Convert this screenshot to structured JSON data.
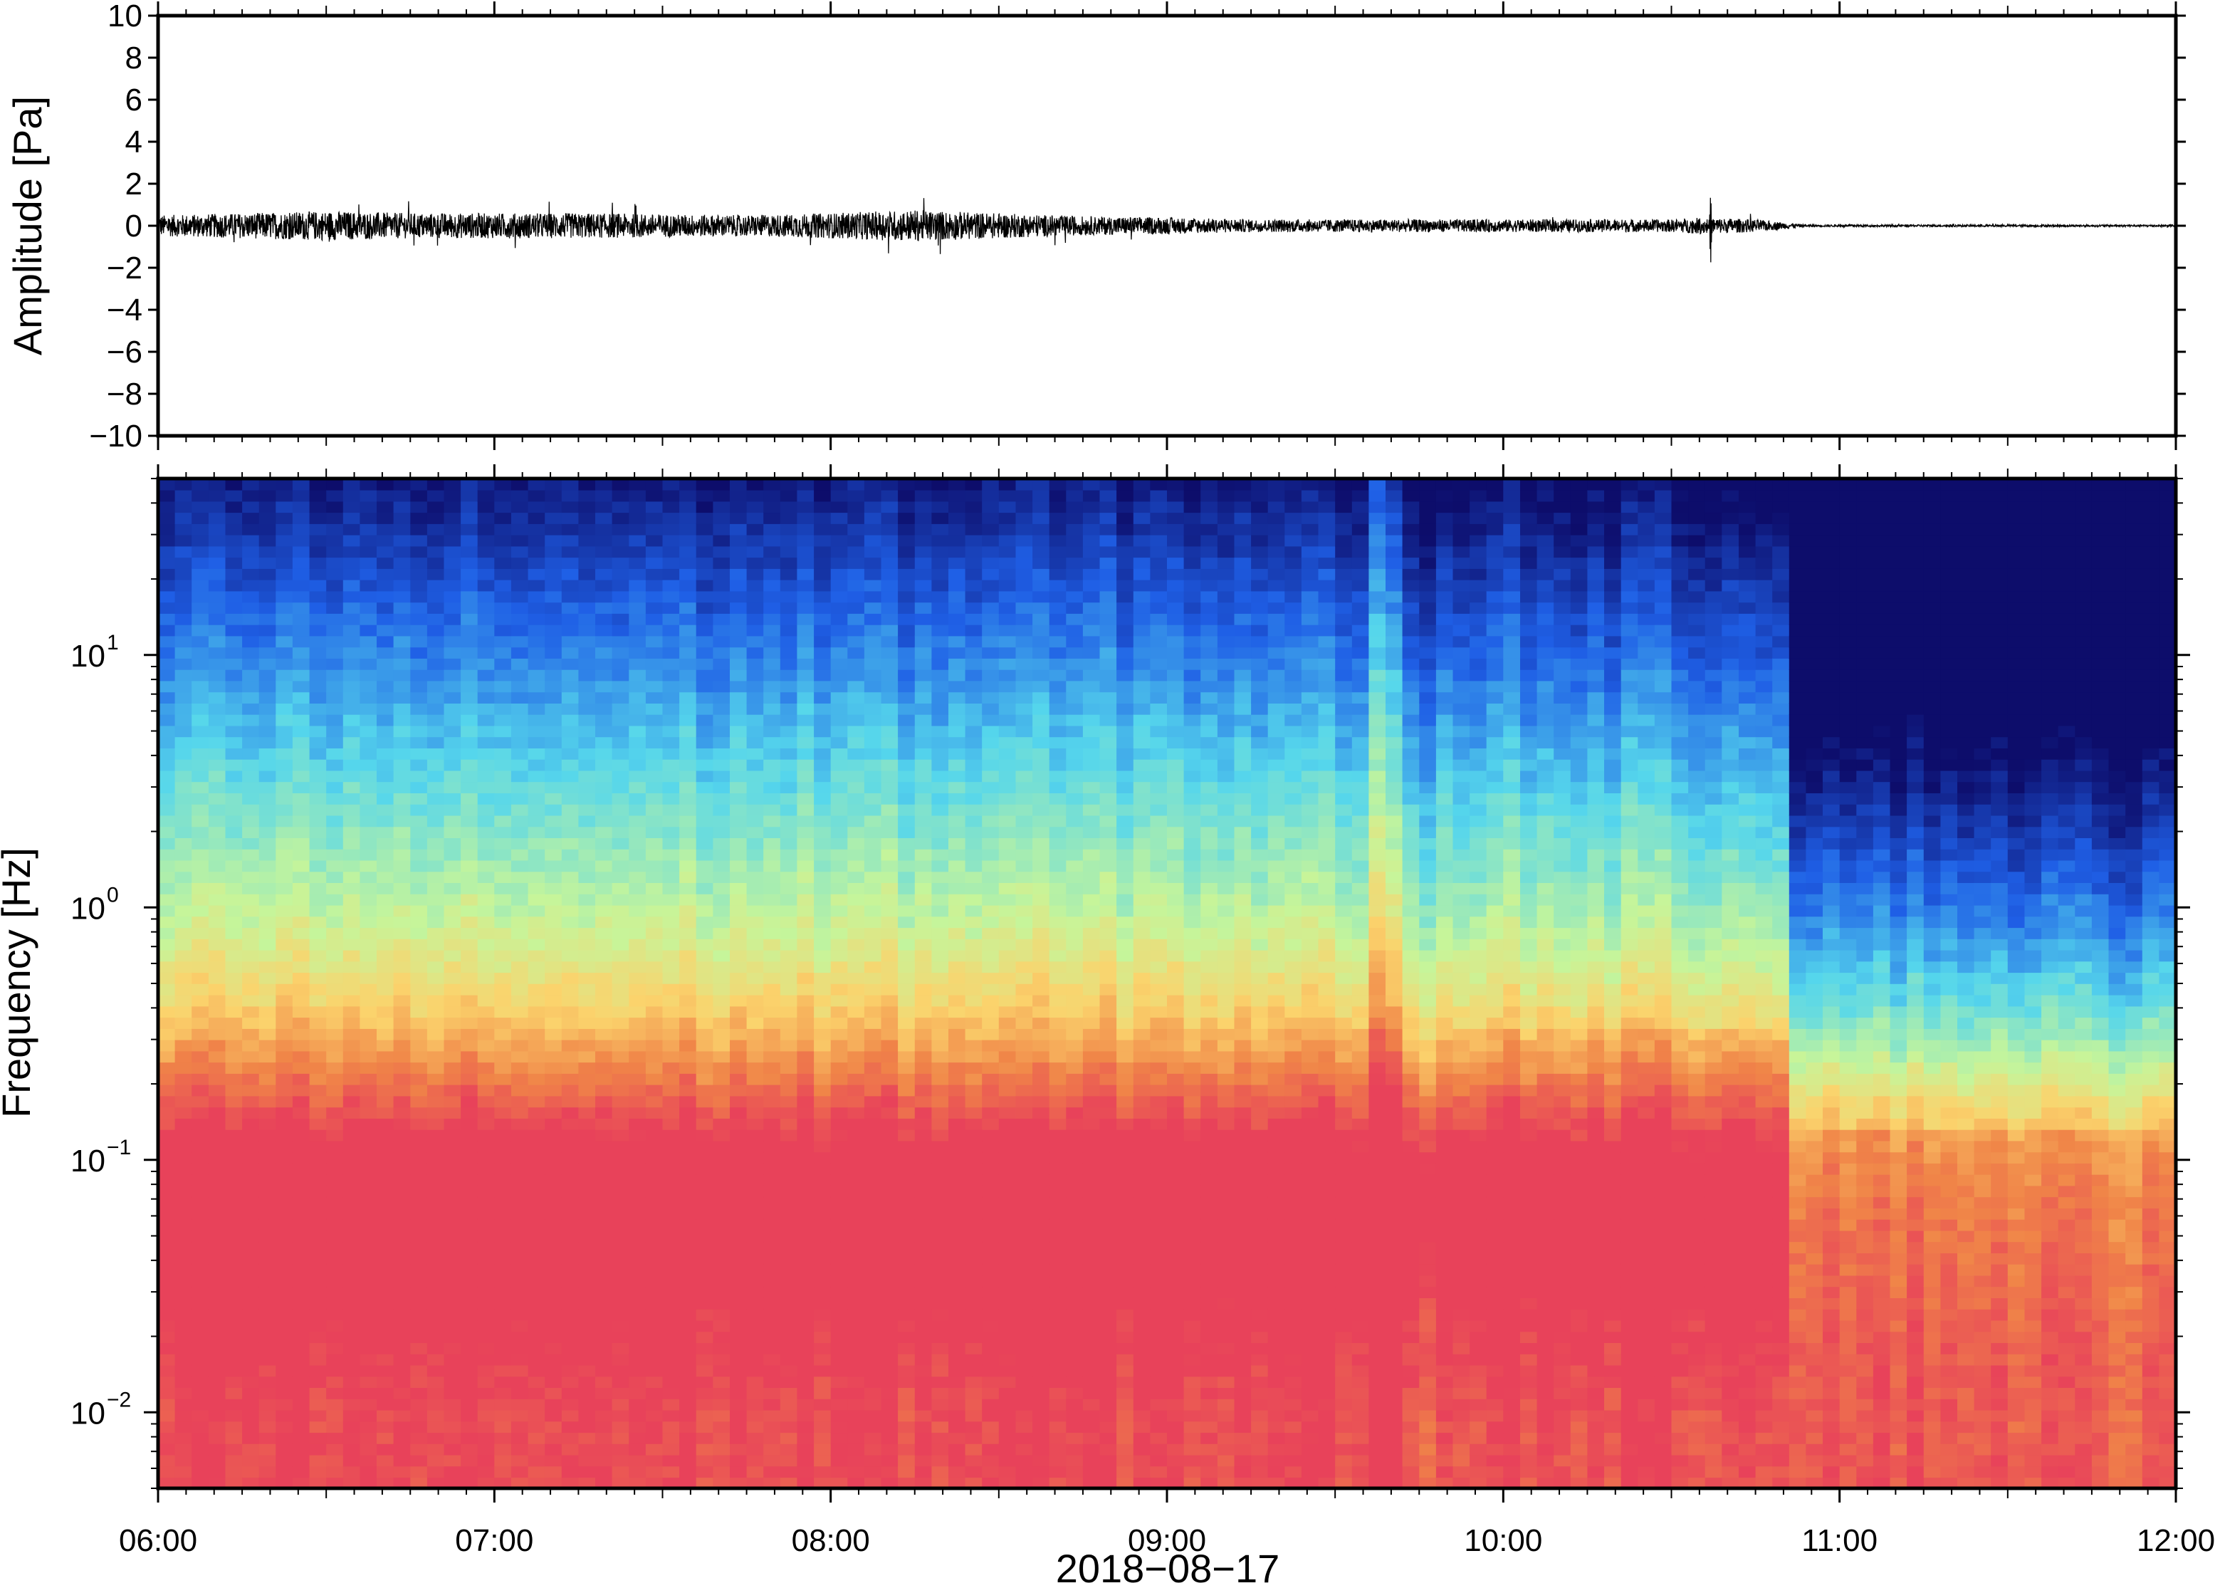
{
  "chart_data": [
    {
      "type": "line",
      "title": "",
      "xlabel": "",
      "ylabel": "Amplitude [Pa]",
      "ylim": [
        -10,
        10
      ],
      "yticks": [
        10,
        8,
        6,
        4,
        2,
        0,
        -2,
        -4,
        -6,
        -8,
        -10
      ],
      "ytick_labels": [
        "10",
        "8",
        "6",
        "4",
        "2",
        "0",
        "−2",
        "−4",
        "−6",
        "−8",
        "−10"
      ],
      "x_range": [
        "06:00",
        "12:00"
      ],
      "line_color": "#000000",
      "series": [
        {
          "x_hours": [
            6.0,
            6.25,
            6.5,
            6.75,
            7.0,
            7.25,
            7.5,
            7.75,
            8.0,
            8.25,
            8.5,
            8.75,
            9.0,
            9.25,
            9.5,
            9.75,
            10.0,
            10.25,
            10.5,
            10.6,
            10.75,
            10.9,
            11.25,
            11.5,
            11.75,
            12.0
          ],
          "envelope_pa": [
            0.5,
            0.6,
            0.7,
            0.6,
            0.6,
            0.6,
            0.55,
            0.5,
            0.6,
            0.75,
            0.6,
            0.45,
            0.4,
            0.3,
            0.3,
            0.3,
            0.3,
            0.3,
            0.3,
            0.4,
            0.3,
            0.05,
            0.05,
            0.05,
            0.05,
            0.05
          ]
        }
      ],
      "annotations": [
        {
          "time": "10:37",
          "peak_pa": 1.6,
          "trough_pa": -1.9
        }
      ]
    },
    {
      "type": "heatmap",
      "title": "",
      "xlabel": "2018−08−17",
      "ylabel": "Frequency [Hz]",
      "y_scale": "log",
      "ylim": [
        0.005,
        50
      ],
      "ytick_values": [
        10,
        1,
        0.1,
        0.01
      ],
      "ytick_labels": [
        {
          "base": "10",
          "exp": "1"
        },
        {
          "base": "10",
          "exp": "0"
        },
        {
          "base": "10",
          "exp": "−1"
        },
        {
          "base": "10",
          "exp": "−2"
        }
      ],
      "xticks": [
        "06:00",
        "07:00",
        "08:00",
        "09:00",
        "10:00",
        "11:00",
        "12:00"
      ],
      "colormap": "spectral (blue = low power, red = high power)",
      "colors": {
        "lowest": "#0d0d6b",
        "low": "#1f5fe6",
        "mid_low": "#55d6ec",
        "mid": "#c6f59a",
        "mid_high": "#fbd36c",
        "high": "#f08548",
        "highest": "#e8425a"
      },
      "features": [
        {
          "description": "broad high-power band near 0.03–0.3 Hz from 06:00 to about 10:50"
        },
        {
          "description": "vertical broadband stripe near 09:40–09:45"
        },
        {
          "description": "sharp drop in power above about 0.15 Hz after about 10:50"
        }
      ]
    }
  ]
}
